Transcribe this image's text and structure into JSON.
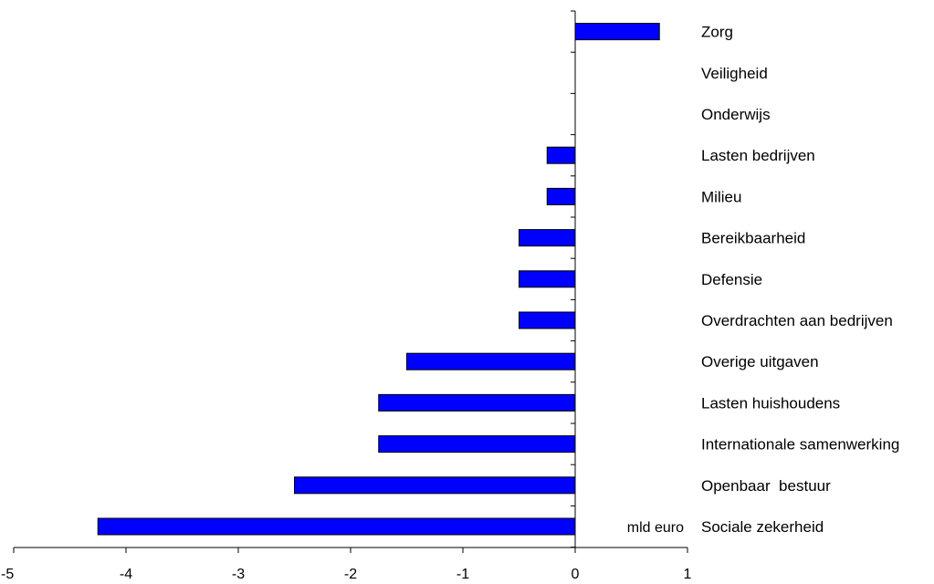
{
  "chart_data": {
    "type": "bar",
    "orientation": "horizontal",
    "categories": [
      "Zorg",
      "Veiligheid",
      "Onderwijs",
      "Lasten bedrijven",
      "Milieu",
      "Bereikbaarheid",
      "Defensie",
      "Overdrachten aan bedrijven",
      "Overige uitgaven",
      "Lasten huishoudens",
      "Internationale samenwerking",
      "Openbaar  bestuur",
      "Sociale zekerheid"
    ],
    "values": [
      0.75,
      0,
      0,
      -0.25,
      -0.25,
      -0.5,
      -0.5,
      -0.5,
      -1.5,
      -1.75,
      -1.75,
      -2.5,
      -4.25
    ],
    "unit_label": "mld euro",
    "xlim": [
      -5,
      1
    ],
    "xticks": [
      -5,
      -4,
      -3,
      -2,
      -1,
      0,
      1
    ],
    "xtick_labels": [
      "-5",
      "-4",
      "-3",
      "-2",
      "-1",
      "0",
      "1"
    ],
    "grid": false,
    "bar_color": "#0000ff",
    "bar_edge_color": "#000000"
  }
}
